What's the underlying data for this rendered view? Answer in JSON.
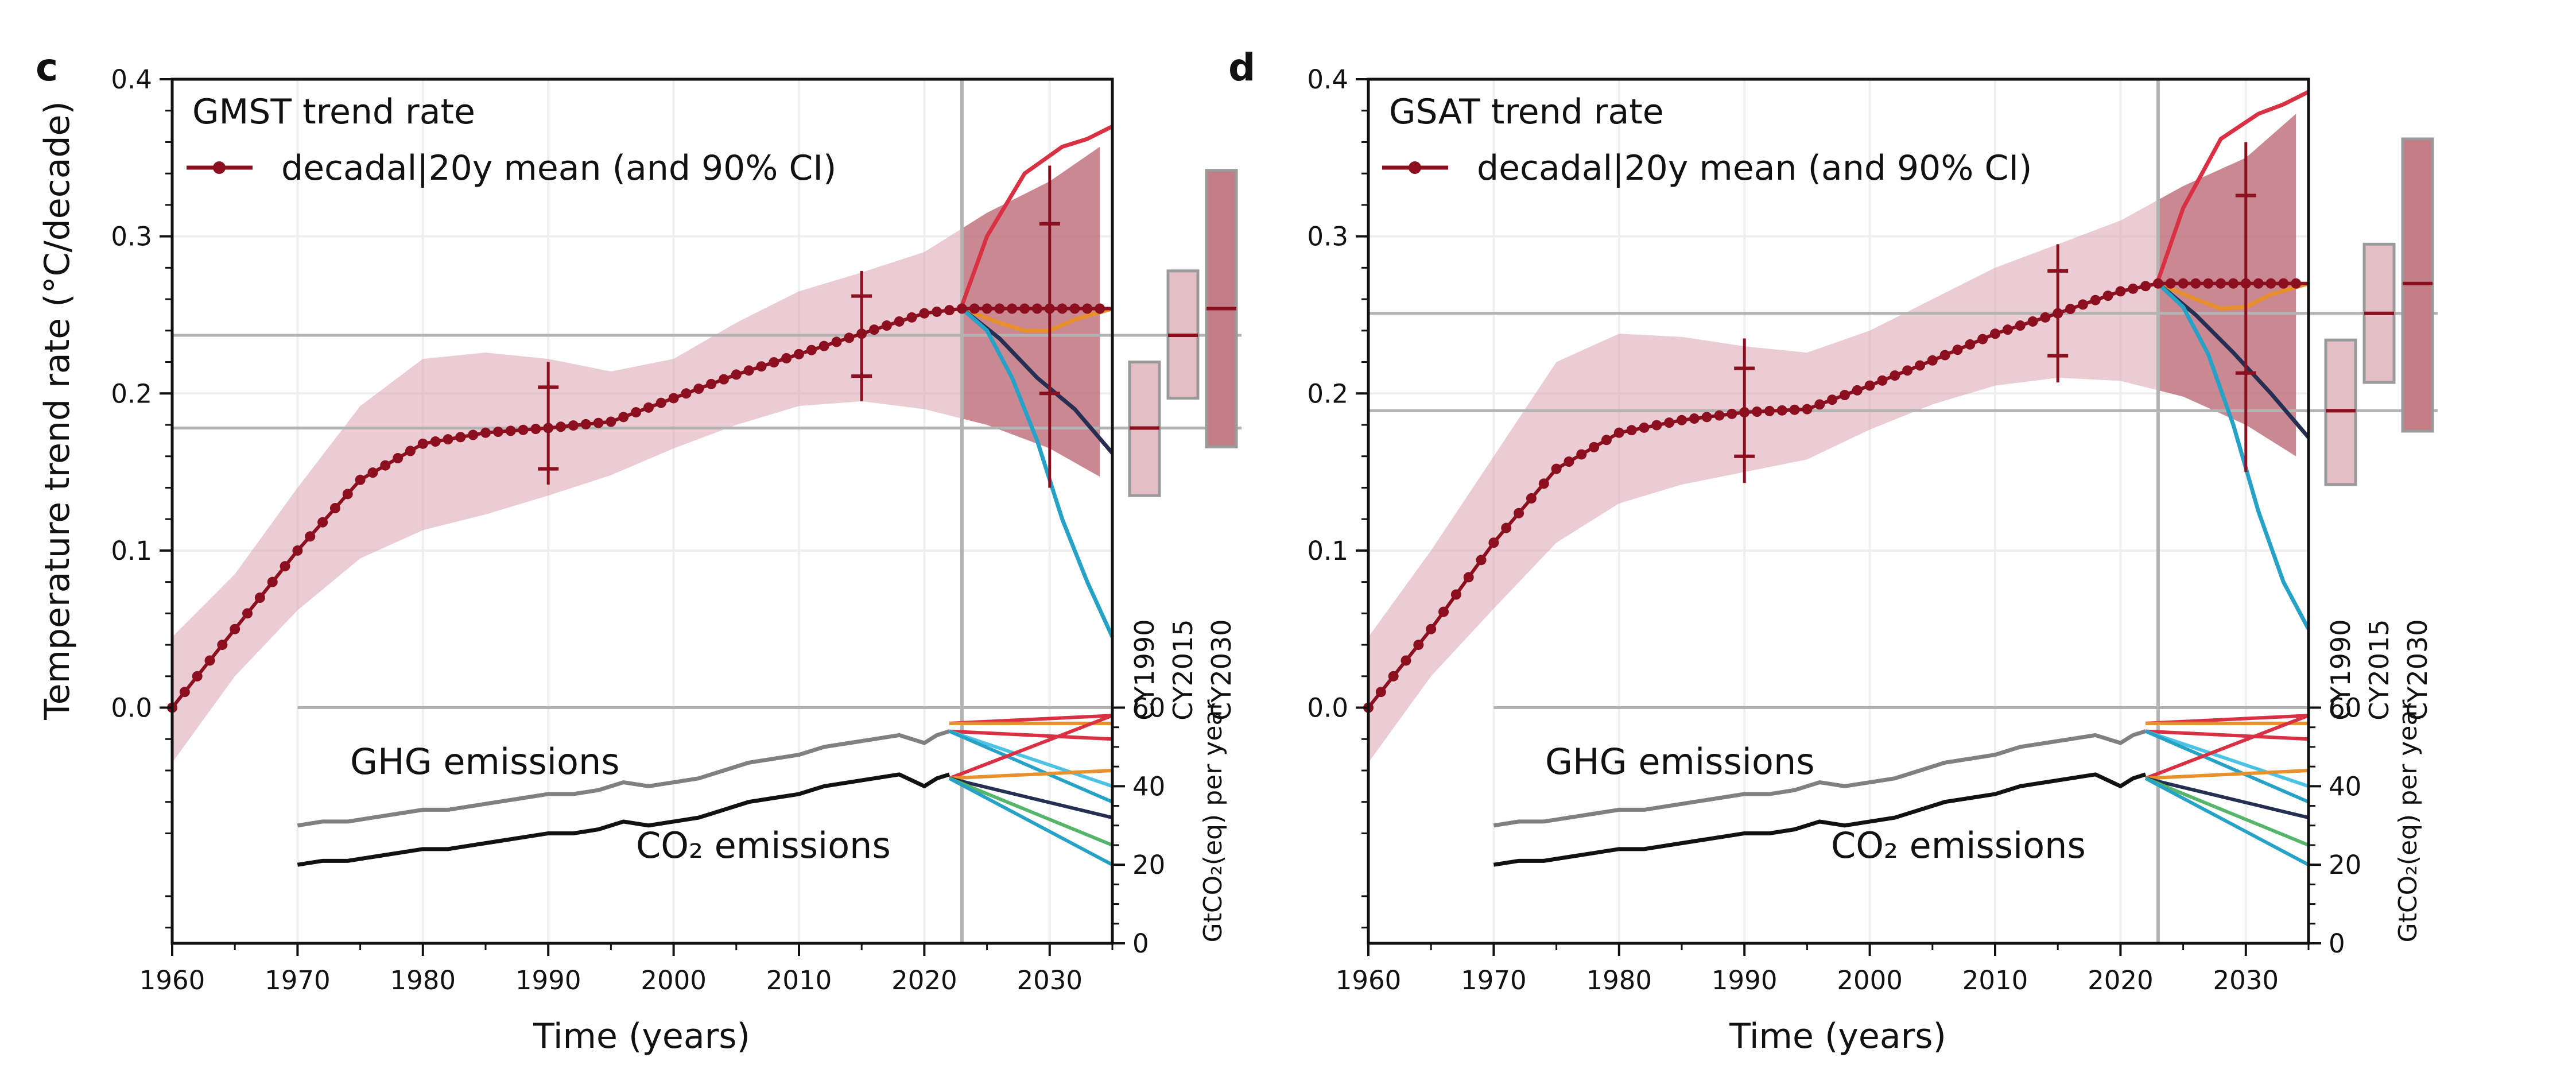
{
  "colors": {
    "dot_line": "#8b0f1f",
    "ci_band": "#d9a2ad",
    "ci_band_future": "#b35a68",
    "gray_hline": "#b3b3b3",
    "ghg": "#808080",
    "co2": "#111111",
    "scen_red": "#d93044",
    "scen_orange": "#e8912c",
    "scen_navy": "#242f52",
    "scen_cyan": "#26a2c7",
    "scen_green": "#55b56b",
    "scen_light_cyan": "#4cc3e6"
  },
  "shared": {
    "xlabel": "Time (years)",
    "right_ylabel": "GtCO₂(eq) per year",
    "x_ticks": [
      1960,
      1970,
      1980,
      1990,
      2000,
      2010,
      2020,
      2030
    ],
    "y_ticks": [
      0.0,
      0.1,
      0.2,
      0.3,
      0.4
    ],
    "right_ticks": [
      0,
      20,
      40,
      60
    ],
    "ghg_label": "GHG emissions",
    "co2_label": "CO₂ emissions",
    "ghg_emissions": {
      "x": [
        1970,
        1972,
        1974,
        1976,
        1978,
        1980,
        1982,
        1984,
        1986,
        1988,
        1990,
        1992,
        1994,
        1996,
        1998,
        2000,
        2002,
        2004,
        2006,
        2008,
        2010,
        2012,
        2014,
        2016,
        2018,
        2020,
        2021,
        2022
      ],
      "y": [
        30,
        31,
        31,
        32,
        33,
        34,
        34,
        35,
        36,
        37,
        38,
        38,
        39,
        41,
        40,
        41,
        42,
        44,
        46,
        47,
        48,
        50,
        51,
        52,
        53,
        51,
        53,
        54
      ]
    },
    "co2_emissions": {
      "x": [
        1970,
        1972,
        1974,
        1976,
        1978,
        1980,
        1982,
        1984,
        1986,
        1988,
        1990,
        1992,
        1994,
        1996,
        1998,
        2000,
        2002,
        2004,
        2006,
        2008,
        2010,
        2012,
        2014,
        2016,
        2018,
        2020,
        2021,
        2022
      ],
      "y": [
        20,
        21,
        21,
        22,
        23,
        24,
        24,
        25,
        26,
        27,
        28,
        28,
        29,
        31,
        30,
        31,
        32,
        34,
        36,
        37,
        38,
        40,
        41,
        42,
        43,
        40,
        42,
        43
      ]
    },
    "scenario_lines": [
      {
        "color": "#d93044",
        "y0": 56,
        "y1": 58
      },
      {
        "color": "#e8912c",
        "y0": 56,
        "y1": 56
      },
      {
        "color": "#d93044",
        "y0": 54,
        "y1": 52
      },
      {
        "color": "#4cc3e6",
        "y0": 54,
        "y1": 40
      },
      {
        "color": "#26a2c7",
        "y0": 54,
        "y1": 36
      },
      {
        "color": "#d93044",
        "y0": 42,
        "y1": 58
      },
      {
        "color": "#e8912c",
        "y0": 42,
        "y1": 44
      },
      {
        "color": "#242f52",
        "y0": 42,
        "y1": 32
      },
      {
        "color": "#55b56b",
        "y0": 42,
        "y1": 25
      },
      {
        "color": "#26a2c7",
        "y0": 42,
        "y1": 20
      }
    ]
  },
  "chart_data": [
    {
      "type": "line",
      "panel_letter": "c",
      "title": "GMST trend rate",
      "legend_label": "decadal|20y mean (and 90% CI)",
      "ylabel": "Temperature trend rate (°C/decade)",
      "xlim": [
        1960,
        2035
      ],
      "ylim": [
        -0.15,
        0.4
      ],
      "grid": true,
      "right_axis_range": [
        0,
        60
      ],
      "mean_trend": {
        "x": [
          1960,
          1965,
          1970,
          1975,
          1980,
          1985,
          1990,
          1995,
          2000,
          2005,
          2010,
          2015,
          2020,
          2023
        ],
        "y": [
          0.0,
          0.05,
          0.1,
          0.145,
          0.168,
          0.175,
          0.178,
          0.182,
          0.197,
          0.212,
          0.225,
          0.238,
          0.251,
          0.254
        ]
      },
      "ci_upper": {
        "x": [
          1960,
          1965,
          1970,
          1975,
          1980,
          1985,
          1990,
          1995,
          2000,
          2005,
          2010,
          2015,
          2020,
          2025,
          2030,
          2034
        ],
        "y": [
          0.045,
          0.085,
          0.14,
          0.192,
          0.222,
          0.226,
          0.222,
          0.214,
          0.222,
          0.245,
          0.265,
          0.277,
          0.29,
          0.315,
          0.335,
          0.357
        ]
      },
      "ci_lower": {
        "x": [
          1960,
          1965,
          1970,
          1975,
          1980,
          1985,
          1990,
          1995,
          2000,
          2005,
          2010,
          2015,
          2020,
          2025,
          2030,
          2034
        ],
        "y": [
          -0.035,
          0.02,
          0.062,
          0.095,
          0.113,
          0.123,
          0.135,
          0.148,
          0.165,
          0.18,
          0.192,
          0.195,
          0.19,
          0.18,
          0.165,
          0.147
        ]
      },
      "hlines": [
        0.237,
        0.178
      ],
      "vline_x": 2023,
      "error_bars": [
        {
          "x": 1990,
          "center": 0.178,
          "lo": 0.152,
          "hi": 0.204,
          "lo_whisker": 0.142,
          "hi_whisker": 0.22
        },
        {
          "x": 2015,
          "center": 0.237,
          "lo": 0.211,
          "hi": 0.262,
          "lo_whisker": 0.195,
          "hi_whisker": 0.278
        },
        {
          "x": 2030,
          "center": 0.254,
          "lo": 0.2,
          "hi": 0.308,
          "lo_whisker": 0.14,
          "hi_whisker": 0.345
        }
      ],
      "future_flat_y": 0.254,
      "scenarios": [
        {
          "name": "",
          "color": "#d93044",
          "x": [
            2023,
            2025,
            2028,
            2031,
            2033,
            2035
          ],
          "y": [
            0.256,
            0.3,
            0.34,
            0.357,
            0.362,
            0.37
          ]
        },
        {
          "name": "",
          "color": "#e8912c",
          "x": [
            2023,
            2026,
            2028,
            2030,
            2032,
            2035
          ],
          "y": [
            0.254,
            0.245,
            0.24,
            0.24,
            0.247,
            0.254
          ]
        },
        {
          "name": "",
          "color": "#242f52",
          "x": [
            2023,
            2026,
            2029,
            2032,
            2035
          ],
          "y": [
            0.254,
            0.235,
            0.21,
            0.19,
            0.162
          ]
        },
        {
          "name": "",
          "color": "#26a2c7",
          "x": [
            2023,
            2025,
            2027,
            2029,
            2031,
            2033,
            2035
          ],
          "y": [
            0.254,
            0.24,
            0.21,
            0.17,
            0.12,
            0.08,
            0.045
          ]
        }
      ],
      "cy_boxes": [
        {
          "label": "CY1990",
          "lo": 0.135,
          "hi": 0.22,
          "mid": 0.178,
          "fill": "#e3bec4"
        },
        {
          "label": "CY2015",
          "lo": 0.197,
          "hi": 0.278,
          "mid": 0.237,
          "fill": "#e3bec4"
        },
        {
          "label": "CY2030",
          "lo": 0.166,
          "hi": 0.342,
          "mid": 0.254,
          "fill": "#c27d87"
        }
      ]
    },
    {
      "type": "line",
      "panel_letter": "d",
      "title": "GSAT trend rate",
      "legend_label": "decadal|20y mean (and 90% CI)",
      "ylabel": "",
      "xlim": [
        1960,
        2035
      ],
      "ylim": [
        -0.15,
        0.4
      ],
      "grid": true,
      "right_axis_range": [
        0,
        60
      ],
      "mean_trend": {
        "x": [
          1960,
          1965,
          1970,
          1975,
          1980,
          1985,
          1990,
          1995,
          2000,
          2005,
          2010,
          2015,
          2020,
          2023
        ],
        "y": [
          0.0,
          0.05,
          0.105,
          0.152,
          0.175,
          0.183,
          0.188,
          0.19,
          0.205,
          0.221,
          0.238,
          0.251,
          0.265,
          0.27
        ]
      },
      "ci_upper": {
        "x": [
          1960,
          1965,
          1970,
          1975,
          1980,
          1985,
          1990,
          1995,
          2000,
          2005,
          2010,
          2015,
          2020,
          2025,
          2030,
          2034
        ],
        "y": [
          0.045,
          0.1,
          0.16,
          0.22,
          0.238,
          0.236,
          0.23,
          0.226,
          0.24,
          0.26,
          0.28,
          0.295,
          0.31,
          0.332,
          0.35,
          0.378
        ]
      },
      "ci_lower": {
        "x": [
          1960,
          1965,
          1970,
          1975,
          1980,
          1985,
          1990,
          1995,
          2000,
          2005,
          2010,
          2015,
          2020,
          2025,
          2030,
          2034
        ],
        "y": [
          -0.035,
          0.02,
          0.063,
          0.105,
          0.13,
          0.142,
          0.15,
          0.158,
          0.177,
          0.193,
          0.205,
          0.21,
          0.208,
          0.198,
          0.18,
          0.16
        ]
      },
      "hlines": [
        0.251,
        0.189
      ],
      "vline_x": 2023,
      "error_bars": [
        {
          "x": 1990,
          "center": 0.188,
          "lo": 0.16,
          "hi": 0.216,
          "lo_whisker": 0.143,
          "hi_whisker": 0.235
        },
        {
          "x": 2015,
          "center": 0.251,
          "lo": 0.224,
          "hi": 0.278,
          "lo_whisker": 0.207,
          "hi_whisker": 0.295
        },
        {
          "x": 2030,
          "center": 0.27,
          "lo": 0.213,
          "hi": 0.326,
          "lo_whisker": 0.15,
          "hi_whisker": 0.36
        }
      ],
      "future_flat_y": 0.27,
      "scenarios": [
        {
          "name": "",
          "color": "#d93044",
          "x": [
            2023,
            2025,
            2028,
            2031,
            2033,
            2035
          ],
          "y": [
            0.272,
            0.318,
            0.362,
            0.378,
            0.384,
            0.392
          ]
        },
        {
          "name": "",
          "color": "#e8912c",
          "x": [
            2023,
            2026,
            2028,
            2030,
            2032,
            2035
          ],
          "y": [
            0.27,
            0.26,
            0.254,
            0.255,
            0.263,
            0.27
          ]
        },
        {
          "name": "",
          "color": "#242f52",
          "x": [
            2023,
            2026,
            2029,
            2032,
            2035
          ],
          "y": [
            0.27,
            0.25,
            0.226,
            0.2,
            0.172
          ]
        },
        {
          "name": "",
          "color": "#26a2c7",
          "x": [
            2023,
            2025,
            2027,
            2029,
            2031,
            2033,
            2035
          ],
          "y": [
            0.27,
            0.255,
            0.225,
            0.18,
            0.125,
            0.08,
            0.05
          ]
        }
      ],
      "cy_boxes": [
        {
          "label": "CY1990",
          "lo": 0.142,
          "hi": 0.234,
          "mid": 0.189,
          "fill": "#e3bec4"
        },
        {
          "label": "CY2015",
          "lo": 0.207,
          "hi": 0.295,
          "mid": 0.251,
          "fill": "#e3bec4"
        },
        {
          "label": "CY2030",
          "lo": 0.176,
          "hi": 0.362,
          "mid": 0.27,
          "fill": "#c27d87"
        }
      ]
    }
  ]
}
